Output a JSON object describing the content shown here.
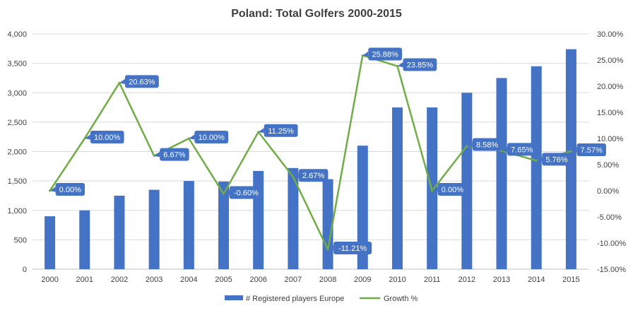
{
  "chart_data": {
    "type": "bar",
    "title": "Poland: Total Golfers 2000-2015",
    "categories": [
      "2000",
      "2001",
      "2002",
      "2003",
      "2004",
      "2005",
      "2006",
      "2007",
      "2008",
      "2009",
      "2010",
      "2011",
      "2012",
      "2013",
      "2014",
      "2015"
    ],
    "series": [
      {
        "name": "# Registered players Europe",
        "type": "bar",
        "axis": "left",
        "color": "#4472c4",
        "values": [
          900,
          1000,
          1250,
          1350,
          1500,
          1490,
          1670,
          1720,
          1530,
          2100,
          2750,
          2750,
          3000,
          3250,
          3450,
          3740
        ]
      },
      {
        "name": "Growth %",
        "type": "line",
        "axis": "right",
        "color": "#70ad47",
        "values": [
          0.0,
          10.0,
          20.63,
          6.67,
          10.0,
          -0.6,
          11.25,
          2.67,
          -11.21,
          25.88,
          23.85,
          0.0,
          8.58,
          7.65,
          5.76,
          7.57
        ],
        "data_labels": [
          "0.00%",
          "10.00%",
          "20.63%",
          "6.67%",
          "10.00%",
          "-0.60%",
          "11.25%",
          "2.67%",
          "-11.21%",
          "25.88%",
          "23.85%",
          "0.00%",
          "8.58%",
          "7.65%",
          "5.76%",
          "7.57%"
        ],
        "label_color": "#4472c4"
      }
    ],
    "y_left": {
      "ylim": [
        0,
        4000
      ],
      "ticks": [
        0,
        500,
        1000,
        1500,
        2000,
        2500,
        3000,
        3500,
        4000
      ],
      "tick_labels": [
        "0",
        "500",
        "1,000",
        "1,500",
        "2,000",
        "2,500",
        "3,000",
        "3,500",
        "4,000"
      ]
    },
    "y_right": {
      "ylim": [
        -15,
        30
      ],
      "ticks": [
        -15,
        -10,
        -5,
        0,
        5,
        10,
        15,
        20,
        25,
        30
      ],
      "tick_labels": [
        "-15.00%",
        "-10.00%",
        "-5.00%",
        "0.00%",
        "5.00%",
        "10.00%",
        "15.00%",
        "20.00%",
        "25.00%",
        "30.00%"
      ]
    },
    "grid": true,
    "legend_position": "bottom"
  }
}
